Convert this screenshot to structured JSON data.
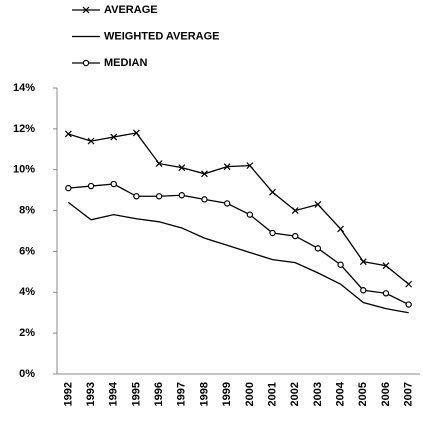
{
  "chart_data": {
    "type": "line",
    "categories": [
      "1992",
      "1993",
      "1994",
      "1995",
      "1996",
      "1997",
      "1998",
      "1999",
      "2000",
      "2001",
      "2002",
      "2003",
      "2004",
      "2005",
      "2006",
      "2007"
    ],
    "series": [
      {
        "name": "AVERAGE",
        "color": "#000000",
        "marker": "x",
        "values": [
          11.75,
          11.4,
          11.6,
          11.8,
          10.3,
          10.1,
          9.8,
          10.15,
          10.2,
          8.9,
          8.0,
          8.3,
          7.1,
          5.5,
          5.3,
          4.4
        ]
      },
      {
        "name": "WEIGHTED AVERAGE",
        "color": "#000000",
        "marker": "none",
        "values": [
          8.4,
          7.55,
          7.8,
          7.6,
          7.45,
          7.15,
          6.65,
          6.3,
          5.95,
          5.6,
          5.45,
          4.95,
          4.4,
          3.5,
          3.2,
          3.0
        ]
      },
      {
        "name": "MEDIAN",
        "color": "#000000",
        "marker": "circle",
        "values": [
          9.1,
          9.2,
          9.3,
          8.7,
          8.7,
          8.75,
          8.55,
          8.35,
          7.8,
          6.9,
          6.75,
          6.15,
          5.35,
          4.1,
          3.95,
          3.4
        ]
      }
    ],
    "ylim": [
      0,
      14
    ],
    "yticks": [
      {
        "value": 0,
        "label": "0%"
      },
      {
        "value": 2,
        "label": "2%"
      },
      {
        "value": 4,
        "label": "4%"
      },
      {
        "value": 6,
        "label": "6%"
      },
      {
        "value": 8,
        "label": "8%"
      },
      {
        "value": 10,
        "label": "10%"
      },
      {
        "value": 12,
        "label": "12%"
      },
      {
        "value": 14,
        "label": "14%"
      }
    ],
    "grid": false,
    "legend": "top-left"
  }
}
